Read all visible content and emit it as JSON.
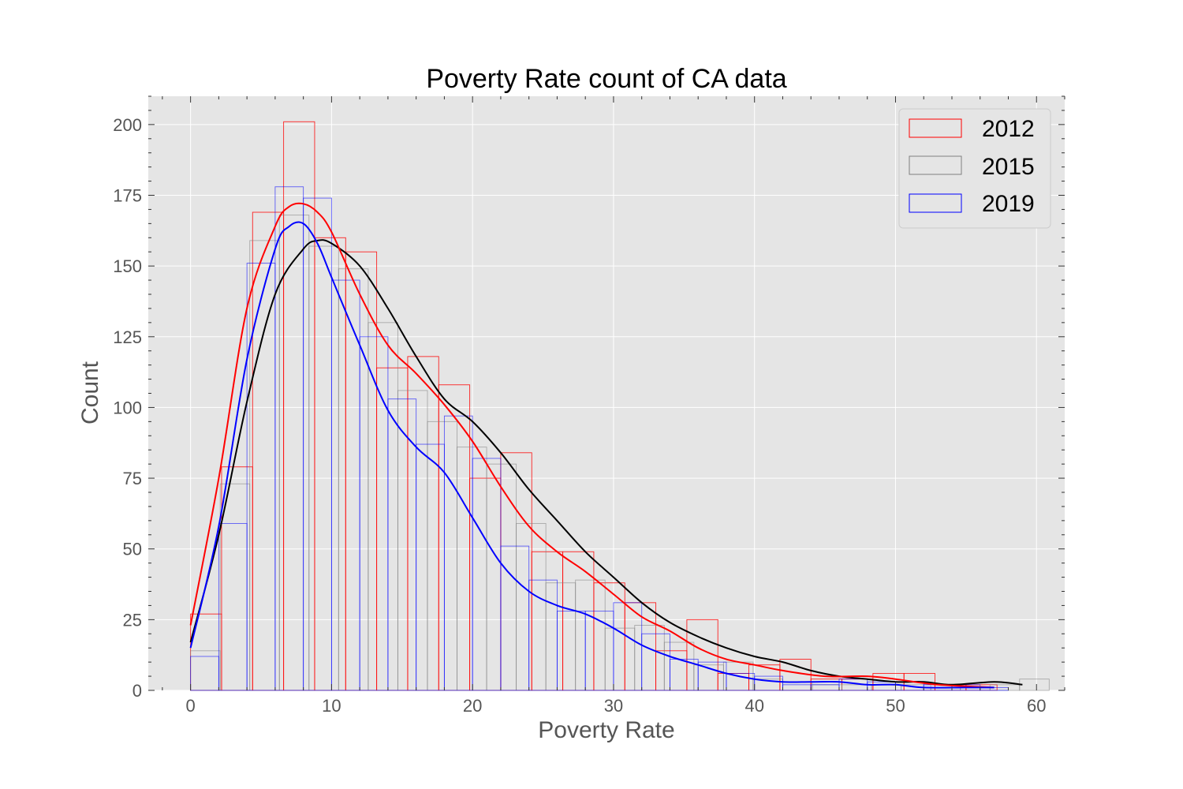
{
  "chart_data": {
    "type": "bar",
    "subtype": "histogram-with-kde",
    "title": "Poverty Rate count of CA  data",
    "xlabel": "Poverty Rate",
    "ylabel": "Count",
    "xlim": [
      -3,
      62
    ],
    "ylim": [
      0,
      210
    ],
    "xticks": [
      0,
      10,
      20,
      30,
      40,
      50,
      60
    ],
    "yticks": [
      0,
      25,
      50,
      75,
      100,
      125,
      150,
      175,
      200
    ],
    "grid": true,
    "legend_position": "top-right",
    "series": [
      {
        "name": "2012",
        "color": "#ff0000",
        "bin_start": 0,
        "bin_width": 2.2,
        "counts": [
          27,
          79,
          169,
          201,
          160,
          155,
          114,
          118,
          108,
          75,
          84,
          49,
          49,
          38,
          31,
          14,
          25,
          6,
          9,
          11,
          4,
          4,
          6,
          6,
          2,
          2
        ],
        "kde": {
          "x": [
            0,
            2,
            4,
            6,
            7,
            8,
            9,
            10,
            12,
            14,
            16,
            18,
            20,
            22,
            24,
            26,
            28,
            30,
            32,
            34,
            36,
            38,
            40,
            42,
            45,
            48,
            50,
            53,
            57
          ],
          "y": [
            23,
            75,
            135,
            164,
            171,
            172,
            169,
            162,
            140,
            122,
            112,
            101,
            88,
            72,
            58,
            49,
            42,
            34,
            26,
            21,
            15,
            11,
            9,
            7,
            5,
            5,
            4,
            2,
            1
          ]
        }
      },
      {
        "name": "2015",
        "color": "#808080",
        "line_color": "#000000",
        "bin_start": 0,
        "bin_width": 2.1,
        "counts": [
          14,
          73,
          159,
          168,
          157,
          149,
          130,
          106,
          95,
          86,
          80,
          59,
          38,
          39,
          22,
          23,
          17,
          9,
          10,
          4,
          3,
          2,
          2,
          2,
          2,
          1,
          1,
          2,
          4
        ],
        "kde": {
          "x": [
            0,
            2,
            4,
            6,
            8,
            9,
            10,
            12,
            14,
            16,
            18,
            20,
            22,
            24,
            26,
            28,
            30,
            32,
            34,
            36,
            38,
            40,
            42,
            44,
            46,
            48,
            50,
            52,
            54,
            57,
            59
          ],
          "y": [
            17,
            55,
            102,
            140,
            156,
            159,
            158,
            150,
            135,
            118,
            103,
            95,
            84,
            71,
            60,
            49,
            40,
            31,
            24,
            19,
            15,
            12,
            10,
            7,
            5,
            4,
            3,
            3,
            2,
            3,
            2
          ]
        }
      },
      {
        "name": "2019",
        "color": "#0000ff",
        "line_color": "#0000ff",
        "bin_start": 0,
        "bin_width": 2.0,
        "counts": [
          12,
          59,
          151,
          178,
          174,
          145,
          125,
          103,
          87,
          97,
          82,
          51,
          39,
          28,
          28,
          31,
          20,
          11,
          10,
          6,
          5,
          2,
          2,
          4,
          3,
          3,
          2,
          2,
          1
        ],
        "kde": {
          "x": [
            0,
            2,
            4,
            6,
            7,
            8,
            9,
            10,
            12,
            14,
            16,
            18,
            20,
            22,
            24,
            26,
            28,
            30,
            32,
            34,
            36,
            38,
            40,
            42,
            44,
            46,
            48,
            50,
            52,
            55,
            57
          ],
          "y": [
            15,
            58,
            117,
            156,
            164,
            165,
            158,
            146,
            122,
            99,
            86,
            77,
            61,
            45,
            35,
            30,
            27,
            22,
            16,
            12,
            9,
            6,
            4,
            3,
            3,
            3,
            2,
            2,
            1,
            1,
            1
          ]
        }
      }
    ]
  }
}
